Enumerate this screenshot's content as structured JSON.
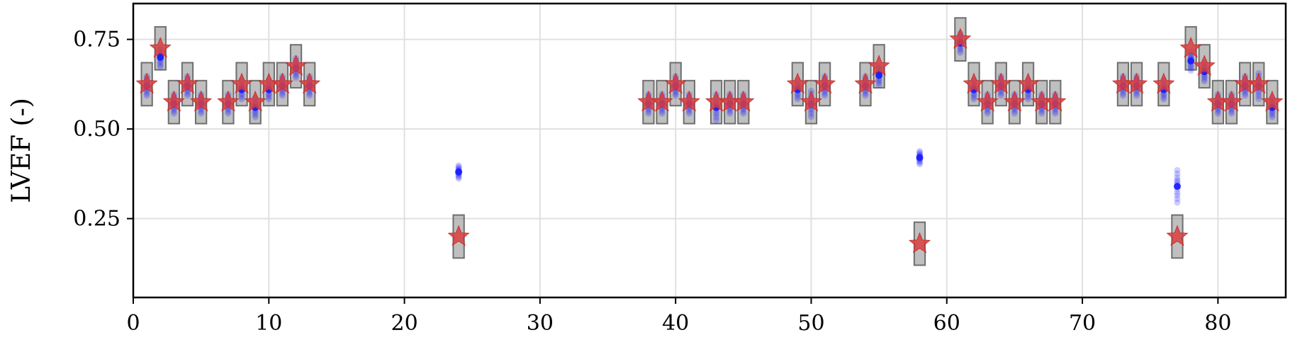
{
  "chart_data": {
    "type": "scatter",
    "title": "",
    "xlabel": "",
    "ylabel": "LVEF (-)",
    "xlim": [
      0,
      85
    ],
    "ylim": [
      0.03,
      0.85
    ],
    "xticks": [
      0,
      10,
      20,
      30,
      40,
      50,
      60,
      70,
      80
    ],
    "yticks": [
      0.25,
      0.5,
      0.75
    ],
    "ytick_labels": [
      "0.25",
      "0.50",
      "0.75"
    ],
    "grid": true,
    "legend": "none",
    "colors": {
      "reference_star": "#d94040",
      "prediction": "#1a1aff",
      "interval_box": "#808080",
      "grid": "#e0e0e0"
    },
    "series": [
      {
        "kind": "reference",
        "marker": "star",
        "x": [
          1,
          2,
          3,
          4,
          5,
          7,
          8,
          9,
          10,
          11,
          12,
          13,
          24,
          38,
          39,
          40,
          41,
          43,
          44,
          45,
          49,
          50,
          51,
          54,
          55,
          58,
          61,
          62,
          63,
          64,
          65,
          66,
          67,
          68,
          73,
          74,
          76,
          77,
          78,
          79,
          80,
          81,
          82,
          83,
          84
        ],
        "y": [
          0.625,
          0.725,
          0.575,
          0.625,
          0.575,
          0.575,
          0.625,
          0.575,
          0.625,
          0.625,
          0.675,
          0.625,
          0.2,
          0.575,
          0.575,
          0.625,
          0.575,
          0.575,
          0.575,
          0.575,
          0.625,
          0.575,
          0.625,
          0.625,
          0.675,
          0.18,
          0.75,
          0.625,
          0.575,
          0.625,
          0.575,
          0.625,
          0.575,
          0.575,
          0.625,
          0.625,
          0.625,
          0.2,
          0.725,
          0.675,
          0.575,
          0.575,
          0.625,
          0.625,
          0.575
        ]
      },
      {
        "kind": "interval",
        "marker": "box",
        "half_width": 0.4,
        "half_height": 0.06,
        "x": [
          1,
          2,
          3,
          4,
          5,
          7,
          8,
          9,
          10,
          11,
          12,
          13,
          24,
          38,
          39,
          40,
          41,
          43,
          44,
          45,
          49,
          50,
          51,
          54,
          55,
          58,
          61,
          62,
          63,
          64,
          65,
          66,
          67,
          68,
          73,
          74,
          76,
          77,
          78,
          79,
          80,
          81,
          82,
          83,
          84
        ],
        "y": [
          0.625,
          0.725,
          0.575,
          0.625,
          0.575,
          0.575,
          0.625,
          0.575,
          0.625,
          0.625,
          0.675,
          0.625,
          0.2,
          0.575,
          0.575,
          0.625,
          0.575,
          0.575,
          0.575,
          0.575,
          0.625,
          0.575,
          0.625,
          0.625,
          0.675,
          0.18,
          0.75,
          0.625,
          0.575,
          0.625,
          0.575,
          0.625,
          0.575,
          0.575,
          0.625,
          0.625,
          0.625,
          0.2,
          0.725,
          0.675,
          0.575,
          0.575,
          0.625,
          0.625,
          0.575
        ]
      },
      {
        "kind": "prediction",
        "marker": "circle",
        "x": [
          1,
          2,
          3,
          4,
          5,
          7,
          8,
          9,
          10,
          11,
          12,
          13,
          24,
          38,
          39,
          40,
          41,
          43,
          44,
          45,
          49,
          50,
          51,
          54,
          55,
          58,
          61,
          62,
          63,
          64,
          65,
          66,
          67,
          68,
          73,
          74,
          76,
          77,
          78,
          79,
          80,
          81,
          82,
          83,
          84
        ],
        "y": [
          0.62,
          0.7,
          0.57,
          0.62,
          0.57,
          0.57,
          0.61,
          0.56,
          0.61,
          0.62,
          0.67,
          0.62,
          0.38,
          0.57,
          0.57,
          0.62,
          0.57,
          0.56,
          0.57,
          0.57,
          0.61,
          0.57,
          0.62,
          0.62,
          0.65,
          0.42,
          0.74,
          0.61,
          0.57,
          0.62,
          0.57,
          0.61,
          0.57,
          0.57,
          0.62,
          0.62,
          0.61,
          0.34,
          0.69,
          0.66,
          0.57,
          0.57,
          0.62,
          0.62,
          0.56
        ],
        "spread": [
          0.03,
          0.03,
          0.03,
          0.03,
          0.03,
          0.03,
          0.03,
          0.03,
          0.03,
          0.03,
          0.03,
          0.03,
          0.02,
          0.03,
          0.03,
          0.03,
          0.03,
          0.04,
          0.03,
          0.03,
          0.03,
          0.04,
          0.03,
          0.03,
          0.03,
          0.02,
          0.03,
          0.03,
          0.03,
          0.03,
          0.03,
          0.03,
          0.03,
          0.03,
          0.03,
          0.03,
          0.03,
          0.05,
          0.03,
          0.03,
          0.03,
          0.03,
          0.03,
          0.04,
          0.03
        ]
      }
    ]
  }
}
